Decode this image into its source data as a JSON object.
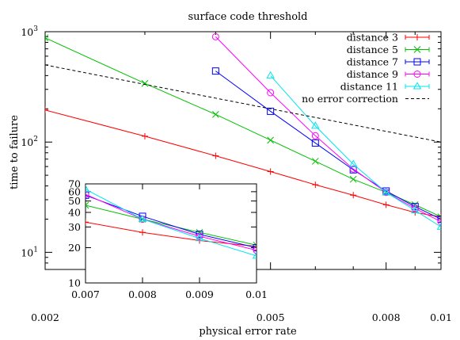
{
  "chart_data": [
    {
      "type": "line",
      "title": "surface code threshold",
      "xlabel": "physical error rate",
      "ylabel": "time to failure",
      "xscale": "log",
      "yscale": "log",
      "xlim": [
        0.002,
        0.01
      ],
      "ylim": [
        7,
        1000
      ],
      "grid": false,
      "legend_position": "top-right",
      "x_ticks": [
        {
          "value": 0.002,
          "label": "0.002"
        },
        {
          "value": 0.005,
          "label": "0.005"
        },
        {
          "value": 0.008,
          "label": "0.008"
        },
        {
          "value": 0.01,
          "label": "0.01"
        }
      ],
      "y_ticks": [
        {
          "value": 10,
          "label": "10",
          "exp": "1"
        },
        {
          "value": 100,
          "label": "10",
          "exp": "2"
        },
        {
          "value": 1000,
          "label": "10",
          "exp": "3"
        }
      ],
      "series": [
        {
          "name": "distance 3",
          "color": "#ff0000",
          "marker": "plus",
          "x": [
            0.002,
            0.003,
            0.004,
            0.005,
            0.006,
            0.007,
            0.008,
            0.009,
            0.01
          ],
          "y": [
            195,
            113,
            75,
            54,
            41,
            33,
            27,
            23,
            21
          ]
        },
        {
          "name": "distance 5",
          "color": "#00c000",
          "marker": "x",
          "x": [
            0.002,
            0.003,
            0.004,
            0.005,
            0.006,
            0.007,
            0.008,
            0.009,
            0.01
          ],
          "y": [
            880,
            340,
            178,
            104,
            67,
            46,
            35,
            27,
            21
          ]
        },
        {
          "name": "distance 7",
          "color": "#0000ff",
          "marker": "square",
          "x": [
            0.004,
            0.005,
            0.006,
            0.007,
            0.008,
            0.009,
            0.01
          ],
          "y": [
            440,
            190,
            98,
            56,
            36,
            26,
            20
          ]
        },
        {
          "name": "distance 9",
          "color": "#ff00ff",
          "marker": "circle",
          "x": [
            0.004,
            0.005,
            0.006,
            0.007,
            0.008,
            0.009,
            0.01
          ],
          "y": [
            900,
            280,
            114,
            57,
            35,
            25,
            19
          ]
        },
        {
          "name": "distance 11",
          "color": "#00e5ee",
          "marker": "triangle",
          "x": [
            0.005,
            0.006,
            0.007,
            0.008,
            0.009,
            0.01
          ],
          "y": [
            400,
            140,
            63,
            35,
            24,
            17
          ]
        },
        {
          "name": "no error correction",
          "color": "#000000",
          "marker": "none",
          "dashed": true,
          "x": [
            0.002,
            0.003,
            0.004,
            0.005,
            0.006,
            0.007,
            0.008,
            0.009,
            0.01
          ],
          "y": [
            500,
            333,
            250,
            200,
            167,
            143,
            125,
            111,
            100
          ]
        }
      ]
    },
    {
      "type": "line",
      "title": "",
      "xlabel": "",
      "ylabel": "",
      "xscale": "linear",
      "yscale": "log",
      "xlim": [
        0.007,
        0.01
      ],
      "ylim": [
        10,
        70
      ],
      "grid": false,
      "x_ticks": [
        {
          "value": 0.007,
          "label": "0.007"
        },
        {
          "value": 0.008,
          "label": "0.008"
        },
        {
          "value": 0.009,
          "label": "0.009"
        },
        {
          "value": 0.01,
          "label": "0.01"
        }
      ],
      "y_ticks": [
        {
          "value": 10,
          "label": "10"
        },
        {
          "value": 20,
          "label": "20"
        },
        {
          "value": 30,
          "label": "30"
        },
        {
          "value": 40,
          "label": "40"
        },
        {
          "value": 50,
          "label": "50"
        },
        {
          "value": 60,
          "label": "60"
        },
        {
          "value": 70,
          "label": "70"
        }
      ],
      "series": [
        {
          "name": "distance 3",
          "color": "#ff0000",
          "marker": "plus",
          "x": [
            0.007,
            0.008,
            0.009,
            0.01
          ],
          "y": [
            33,
            27,
            23,
            20.5
          ]
        },
        {
          "name": "distance 5",
          "color": "#00c000",
          "marker": "x",
          "x": [
            0.007,
            0.008,
            0.009,
            0.01
          ],
          "y": [
            46,
            35,
            27,
            21
          ]
        },
        {
          "name": "distance 7",
          "color": "#0000ff",
          "marker": "square",
          "x": [
            0.007,
            0.008,
            0.009,
            0.01
          ],
          "y": [
            56,
            37,
            26,
            20
          ]
        },
        {
          "name": "distance 9",
          "color": "#ff00ff",
          "marker": "circle",
          "x": [
            0.007,
            0.008,
            0.009,
            0.01
          ],
          "y": [
            57,
            35,
            25,
            19
          ]
        },
        {
          "name": "distance 11",
          "color": "#00e5ee",
          "marker": "triangle",
          "x": [
            0.007,
            0.008,
            0.009,
            0.01
          ],
          "y": [
            63,
            35,
            24,
            17
          ]
        }
      ]
    }
  ]
}
